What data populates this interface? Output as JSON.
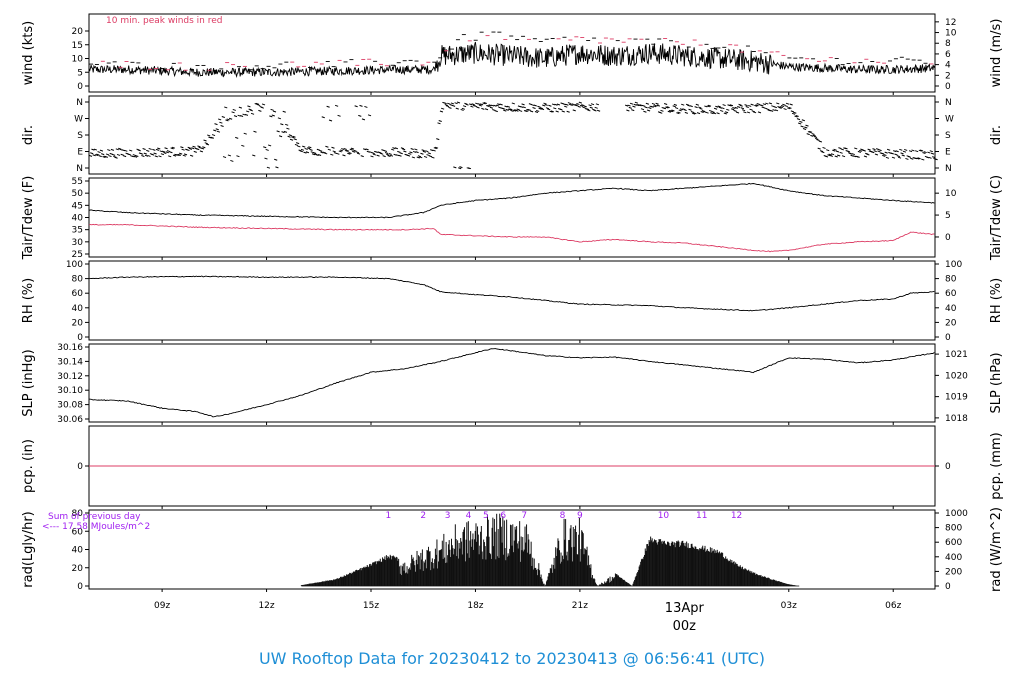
{
  "title": "UW Rooftop Data for 20230412  to  20230413 @ 06:56:41  (UTC)",
  "colors": {
    "accent": "#dc3c64",
    "title": "#1f8fd6",
    "purple": "#a020f0",
    "line": "#000000"
  },
  "x_axis": {
    "ticks": [
      {
        "hours": 9,
        "label": "09z"
      },
      {
        "hours": 12,
        "label": "12z"
      },
      {
        "hours": 15,
        "label": "15z"
      },
      {
        "hours": 18,
        "label": "18z"
      },
      {
        "hours": 21,
        "label": "21z"
      },
      {
        "hours": 27,
        "label": "03z"
      },
      {
        "hours": 30,
        "label": "06z"
      }
    ],
    "day_marker": {
      "hours": 24,
      "date": "13Apr",
      "time": "00z"
    }
  },
  "chart_data": [
    {
      "type": "line",
      "id": "wind",
      "ylabel": "wind (kts)",
      "ylabel_right": "wind (m/s)",
      "ylim": [
        0,
        24
      ],
      "yticks": [
        0,
        5,
        10,
        15,
        20
      ],
      "yticks_right": [
        0,
        2,
        4,
        6,
        8,
        10,
        12
      ],
      "annotation": "10 min. peak winds in red",
      "series": [
        {
          "x": [
            6.9,
            8,
            10,
            12,
            14,
            16,
            16.8,
            17,
            18,
            19,
            20,
            21,
            22,
            23,
            24,
            25,
            26,
            27,
            28,
            29,
            30,
            31.2
          ],
          "y": [
            6,
            6,
            5,
            5,
            5.5,
            6,
            6,
            11,
            12,
            11,
            10,
            12,
            11,
            12,
            11,
            10,
            9,
            7,
            6.5,
            6,
            6,
            6.5
          ]
        },
        {
          "name": "10 min. peak winds",
          "x": [
            6.9,
            10,
            14,
            16.8,
            17.5,
            18.5,
            19.5,
            21,
            23,
            25,
            27,
            29,
            31.2
          ],
          "y": [
            8,
            7,
            8,
            9,
            17,
            19,
            16,
            17,
            16,
            15,
            10,
            9,
            9
          ]
        }
      ]
    },
    {
      "type": "scatter",
      "id": "dir",
      "ylabel": "dir.",
      "yticks": [
        "N",
        "E",
        "S",
        "W",
        "N"
      ],
      "yticks_right": [
        "N",
        "E",
        "S",
        "W",
        "N"
      ],
      "series": [
        {
          "x": [
            6.9,
            8,
            9,
            10,
            11,
            12,
            13,
            14,
            15,
            16,
            16.8,
            17,
            18,
            19,
            20,
            21,
            22,
            23,
            24,
            25,
            26,
            27,
            28,
            29,
            30,
            31.2
          ],
          "y": [
            80,
            85,
            90,
            95,
            300,
            345,
            100,
            95,
            90,
            85,
            80,
            350,
            340,
            335,
            330,
            335,
            340,
            330,
            325,
            320,
            330,
            335,
            90,
            85,
            80,
            70
          ]
        }
      ]
    },
    {
      "type": "line",
      "id": "temp",
      "ylabel": "Tair/Tdew (F)",
      "ylabel_right": "Tair/Tdew (C)",
      "ylim": [
        25,
        55
      ],
      "yticks": [
        25,
        30,
        35,
        40,
        45,
        50,
        55
      ],
      "yticks_right": [
        0,
        5,
        10
      ],
      "series": [
        {
          "x": [
            6.9,
            8,
            10,
            12,
            14,
            15.5,
            16.5,
            17,
            18,
            19,
            20,
            21,
            22,
            23,
            24,
            25,
            26,
            27,
            28,
            29,
            30,
            31.2
          ],
          "y": [
            43,
            42,
            41,
            40.5,
            40,
            40,
            42,
            45,
            47,
            48,
            50,
            51,
            52,
            51,
            52,
            53,
            54,
            51,
            49,
            48,
            47,
            46
          ]
        },
        {
          "x": [
            6.9,
            8,
            10,
            12,
            14,
            16,
            16.8,
            17,
            18,
            19,
            20,
            21,
            22,
            23,
            24,
            25,
            26,
            26.5,
            27,
            28,
            29,
            30,
            30.5,
            31.2
          ],
          "y": [
            37,
            37,
            36,
            35.5,
            35,
            35,
            35.5,
            33,
            32.5,
            32,
            32,
            30,
            31,
            30,
            29.5,
            28,
            26.5,
            26,
            26.5,
            29,
            30,
            30.5,
            34,
            33
          ]
        }
      ]
    },
    {
      "type": "line",
      "id": "rh",
      "ylabel": "RH (%)",
      "ylabel_right": "RH (%)",
      "ylim": [
        0,
        100
      ],
      "yticks": [
        0,
        20,
        40,
        60,
        80,
        100
      ],
      "yticks_right": [
        0,
        20,
        40,
        60,
        80,
        100
      ],
      "series": [
        {
          "x": [
            6.9,
            8,
            10,
            12,
            14,
            15.5,
            16.5,
            17,
            18,
            19,
            20,
            21,
            22,
            23,
            24,
            25,
            26,
            27,
            28,
            29,
            30,
            30.5,
            31.2
          ],
          "y": [
            80,
            82,
            83,
            82,
            82,
            80,
            72,
            62,
            58,
            55,
            50,
            45,
            44,
            43,
            40,
            38,
            36,
            40,
            45,
            50,
            52,
            60,
            62
          ]
        }
      ]
    },
    {
      "type": "line",
      "id": "slp",
      "ylabel": "SLP (inHg)",
      "ylabel_right": "SLP (hPa)",
      "ylim": [
        30.06,
        30.16
      ],
      "yticks": [
        30.06,
        30.08,
        30.1,
        30.12,
        30.14,
        30.16
      ],
      "yticks_right": [
        1018,
        1019,
        1020,
        1021
      ],
      "series": [
        {
          "x": [
            6.9,
            8,
            9,
            10,
            10.5,
            11,
            12,
            13,
            14,
            15,
            16,
            17,
            18,
            18.5,
            19,
            20,
            21,
            22,
            23,
            24,
            25,
            26,
            27,
            28,
            29,
            30,
            31.2
          ],
          "y": [
            30.087,
            30.085,
            30.075,
            30.07,
            30.063,
            30.068,
            30.08,
            30.093,
            30.11,
            30.125,
            30.13,
            30.14,
            30.152,
            30.158,
            30.155,
            30.148,
            30.145,
            30.146,
            30.14,
            30.135,
            30.13,
            30.125,
            30.145,
            30.143,
            30.138,
            30.142,
            30.152
          ]
        }
      ]
    },
    {
      "type": "line",
      "id": "pcp",
      "ylabel": "pcp. (in)",
      "ylabel_right": "pcp. (mm)",
      "ylim": [
        -1,
        1
      ],
      "yticks": [
        0
      ],
      "yticks_right": [
        0
      ],
      "series": [
        {
          "x": [
            6.9,
            31.2
          ],
          "y": [
            0,
            0
          ]
        }
      ]
    },
    {
      "type": "bar",
      "id": "rad",
      "ylabel": "rad(Lgly/hr)",
      "ylabel_right": "rad (W/m^2)",
      "ylim": [
        0,
        80
      ],
      "yticks": [
        0,
        20,
        40,
        60,
        80
      ],
      "yticks_right": [
        0,
        200,
        400,
        600,
        800,
        1000
      ],
      "sum_label": "Sum of previous day",
      "sum_value": "<--- 17.58 MJoules/m^2",
      "hour_marks": [
        {
          "hours": 15.5,
          "label": "1"
        },
        {
          "hours": 16.5,
          "label": "2"
        },
        {
          "hours": 17.2,
          "label": "3"
        },
        {
          "hours": 17.8,
          "label": "4"
        },
        {
          "hours": 18.3,
          "label": "5"
        },
        {
          "hours": 18.8,
          "label": "6"
        },
        {
          "hours": 19.4,
          "label": "7"
        },
        {
          "hours": 20.5,
          "label": "8"
        },
        {
          "hours": 21.0,
          "label": "9"
        },
        {
          "hours": 23.4,
          "label": "10"
        },
        {
          "hours": 24.5,
          "label": "11"
        },
        {
          "hours": 25.5,
          "label": "12"
        }
      ],
      "series": [
        {
          "x": [
            13,
            14,
            15,
            15.5,
            16,
            16.5,
            17,
            17.5,
            18,
            18.5,
            19,
            19.5,
            20,
            20.5,
            21,
            21.5,
            22,
            22.5,
            23,
            23.5,
            24,
            24.5,
            25,
            25.5,
            26,
            26.5,
            27,
            27.3
          ],
          "y": [
            1,
            8,
            25,
            35,
            30,
            45,
            55,
            70,
            75,
            80,
            80,
            70,
            0,
            75,
            75,
            0,
            15,
            0,
            55,
            50,
            50,
            45,
            40,
            25,
            15,
            8,
            2,
            0
          ]
        }
      ]
    }
  ]
}
